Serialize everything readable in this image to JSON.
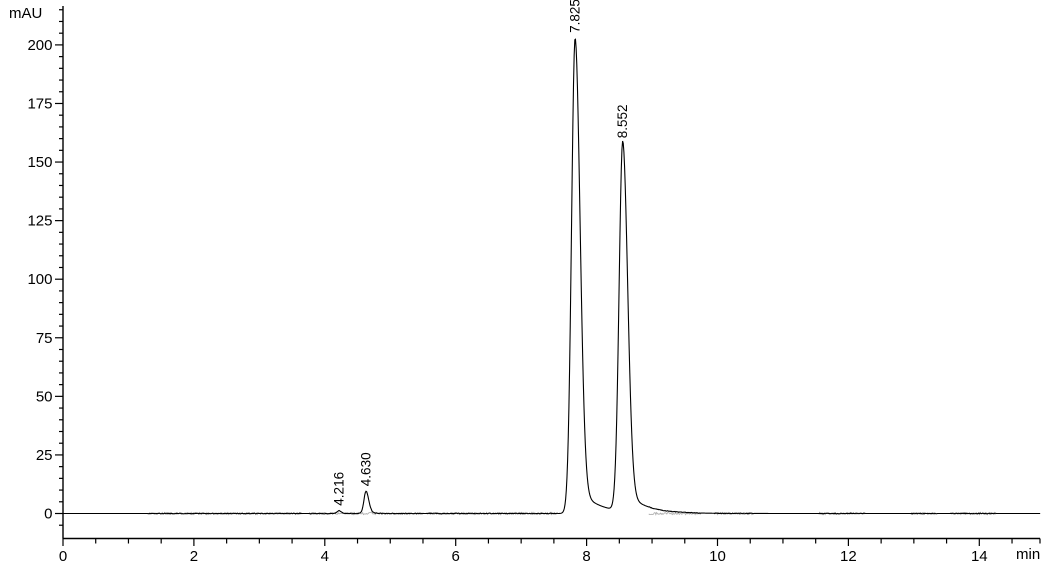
{
  "chart_data": {
    "type": "line",
    "title": "",
    "ylabel": "mAU",
    "xlabel": "min",
    "legend": null,
    "grid": false,
    "x_axis": {
      "min": 0,
      "max": 14.93,
      "major_step": 2,
      "minor_step": 0.5,
      "tick_labels": [
        "0",
        "2",
        "4",
        "6",
        "8",
        "10",
        "12",
        "14"
      ],
      "tick_values": [
        0,
        2,
        4,
        6,
        8,
        10,
        12,
        14
      ]
    },
    "y_axis": {
      "min": -10,
      "max": 216,
      "major_step": 25,
      "minor_step": 5,
      "tick_labels": [
        "0",
        "25",
        "50",
        "75",
        "100",
        "125",
        "150",
        "175",
        "200"
      ],
      "tick_values": [
        0,
        25,
        50,
        75,
        100,
        125,
        150,
        175,
        200
      ]
    },
    "baseline_mau": 0,
    "peaks": [
      {
        "rt_min": 4.216,
        "height_mau": 1.2,
        "label": "4.216"
      },
      {
        "rt_min": 4.63,
        "height_mau": 9.5,
        "label": "4.630"
      },
      {
        "rt_min": 7.825,
        "height_mau": 203,
        "label": "7.825"
      },
      {
        "rt_min": 8.552,
        "height_mau": 158,
        "label": "8.552"
      }
    ],
    "noise_regions_min": [
      [
        1.3,
        3.65
      ],
      [
        3.75,
        5.5
      ],
      [
        5.55,
        7.55
      ],
      [
        8.95,
        9.75
      ],
      [
        9.95,
        10.55
      ],
      [
        11.55,
        12.25
      ],
      [
        12.95,
        13.35
      ],
      [
        13.55,
        14.25
      ]
    ],
    "colors": {
      "trace": "#000000",
      "noise": "#b0b0b0",
      "axis": "#000000",
      "text": "#000000",
      "background": "#ffffff"
    }
  }
}
